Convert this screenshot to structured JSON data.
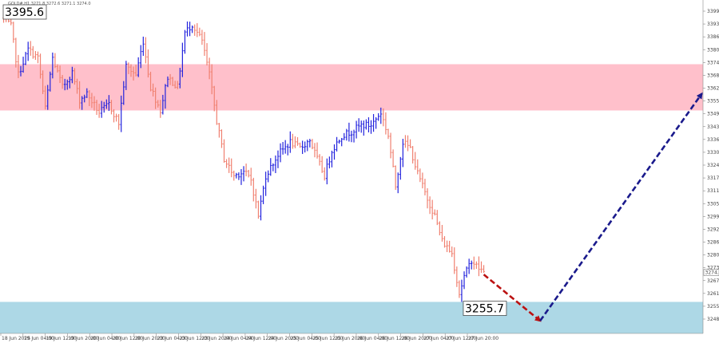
{
  "header": {
    "title": "GOLD#,H1 3271.8 3272.6 3271.1 3274.0"
  },
  "colors": {
    "background": "#ffffff",
    "bar_up": "#2222dd",
    "bar_down": "#f08070",
    "resistance_zone": "#ffc0cb",
    "support_zone": "#add8e6",
    "forecast_down_arrow": "#bb1111",
    "forecast_up_arrow": "#1a1a8c"
  },
  "chart_data": {
    "type": "candlestick-bars",
    "title": "",
    "xlabel": "",
    "ylabel": "",
    "ylim": [
      3243,
      3400
    ],
    "y_ticks": [
      "3399.0",
      "3393.0",
      "3386.0",
      "3380.0",
      "3374.0",
      "3368.0",
      "3362.0",
      "3355.0",
      "3349.0",
      "3343.0",
      "3336.0",
      "3330.0",
      "3324.0",
      "3317.0",
      "3311.0",
      "3305.0",
      "3299.0",
      "3292.0",
      "3286.0",
      "3280.0",
      "3273.0",
      "3267.0",
      "3261.0",
      "3255.0",
      "3248.0"
    ],
    "x_ticks": [
      "18 Jun 2025",
      "19 Jun 04:00",
      "19 Jun 12:00",
      "19 Jun 20:00",
      "20 Jun 04:00",
      "20 Jun 12:00",
      "20 Jun 20:00",
      "23 Jun 04:00",
      "23 Jun 12:00",
      "23 Jun 20:00",
      "24 Jun 04:00",
      "24 Jun 12:00",
      "24 Jun 20:00",
      "25 Jun 04:00",
      "25 Jun 12:00",
      "25 Jun 20:00",
      "26 Jun 04:00",
      "26 Jun 12:00",
      "26 Jun 20:00",
      "27 Jun 04:00",
      "27 Jun 12:00",
      "27 Jun 20:00"
    ],
    "zones": [
      {
        "type": "resistance",
        "from": 3349,
        "to": 3371
      },
      {
        "type": "support",
        "from": 3243,
        "to": 3258
      }
    ],
    "callouts": [
      {
        "text": "3395.6",
        "bar_index": 0,
        "price": 3395.6
      },
      {
        "text": "3255.7",
        "bar_index": 187,
        "price": 3255.7
      }
    ],
    "current_price_tag": "3274.0",
    "forecast": [
      {
        "direction": "down",
        "from": {
          "bar_index": 196,
          "price": 3271
        },
        "to": {
          "bar_index": 219,
          "price": 3249
        }
      },
      {
        "direction": "up",
        "from": {
          "bar_index": 219,
          "price": 3249
        },
        "to": {
          "bar_index": 285,
          "price": 3357
        }
      }
    ],
    "anchors": [
      [
        0,
        3393
      ],
      [
        3,
        3389
      ],
      [
        6,
        3366
      ],
      [
        10,
        3378
      ],
      [
        14,
        3374
      ],
      [
        17,
        3350
      ],
      [
        20,
        3374
      ],
      [
        24,
        3360
      ],
      [
        28,
        3367
      ],
      [
        31,
        3354
      ],
      [
        34,
        3357
      ],
      [
        39,
        3348
      ],
      [
        43,
        3352
      ],
      [
        47,
        3343
      ],
      [
        50,
        3370
      ],
      [
        54,
        3366
      ],
      [
        57,
        3382
      ],
      [
        60,
        3360
      ],
      [
        64,
        3349
      ],
      [
        67,
        3365
      ],
      [
        71,
        3360
      ],
      [
        74,
        3386
      ],
      [
        77,
        3390
      ],
      [
        81,
        3382
      ],
      [
        84,
        3366
      ],
      [
        87,
        3344
      ],
      [
        90,
        3326
      ],
      [
        94,
        3318
      ],
      [
        98,
        3320
      ],
      [
        101,
        3316
      ],
      [
        104,
        3299
      ],
      [
        107,
        3318
      ],
      [
        112,
        3328
      ],
      [
        117,
        3334
      ],
      [
        121,
        3331
      ],
      [
        125,
        3335
      ],
      [
        128,
        3326
      ],
      [
        131,
        3318
      ],
      [
        134,
        3330
      ],
      [
        138,
        3337
      ],
      [
        142,
        3339
      ],
      [
        146,
        3342
      ],
      [
        150,
        3342
      ],
      [
        154,
        3348
      ],
      [
        157,
        3337
      ],
      [
        160,
        3313
      ],
      [
        163,
        3334
      ],
      [
        166,
        3331
      ],
      [
        169,
        3319
      ],
      [
        173,
        3307
      ],
      [
        176,
        3299
      ],
      [
        179,
        3287
      ],
      [
        183,
        3281
      ],
      [
        186,
        3262
      ],
      [
        188,
        3270
      ],
      [
        191,
        3278
      ],
      [
        193,
        3275
      ],
      [
        196,
        3272
      ]
    ]
  }
}
